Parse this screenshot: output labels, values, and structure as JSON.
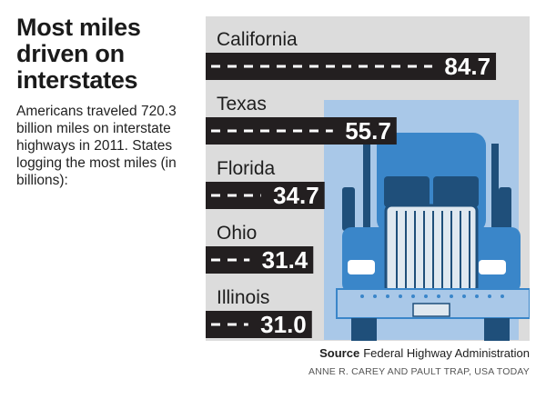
{
  "header": {
    "title": "Most miles driven on interstates",
    "subtitle": "Americans traveled 720.3 billion miles on interstate highways in 2011. States logging the most miles (in billions):"
  },
  "footer": {
    "source_label": "Source",
    "source_text": "Federal Highway Administration",
    "credit": "ANNE R. CAREY AND PAULT TRAP, USA TODAY"
  },
  "colors": {
    "bar": "#231f20",
    "dash": "#ffffff",
    "panel": "#dcdcdc",
    "truck_blue": "#3a86c9",
    "truck_dark": "#1f4f7a",
    "sky_blue": "#a9c8e8"
  },
  "chart_data": {
    "type": "bar",
    "orientation": "horizontal",
    "categories": [
      "California",
      "Texas",
      "Florida",
      "Ohio",
      "Illinois"
    ],
    "values": [
      84.7,
      55.7,
      34.7,
      31.4,
      31.0
    ],
    "value_labels": [
      "84.7",
      "55.7",
      "34.7",
      "31.4",
      "31.0"
    ],
    "unit": "billions of miles",
    "xlim": [
      0,
      90
    ],
    "grid": false,
    "legend": "none"
  }
}
